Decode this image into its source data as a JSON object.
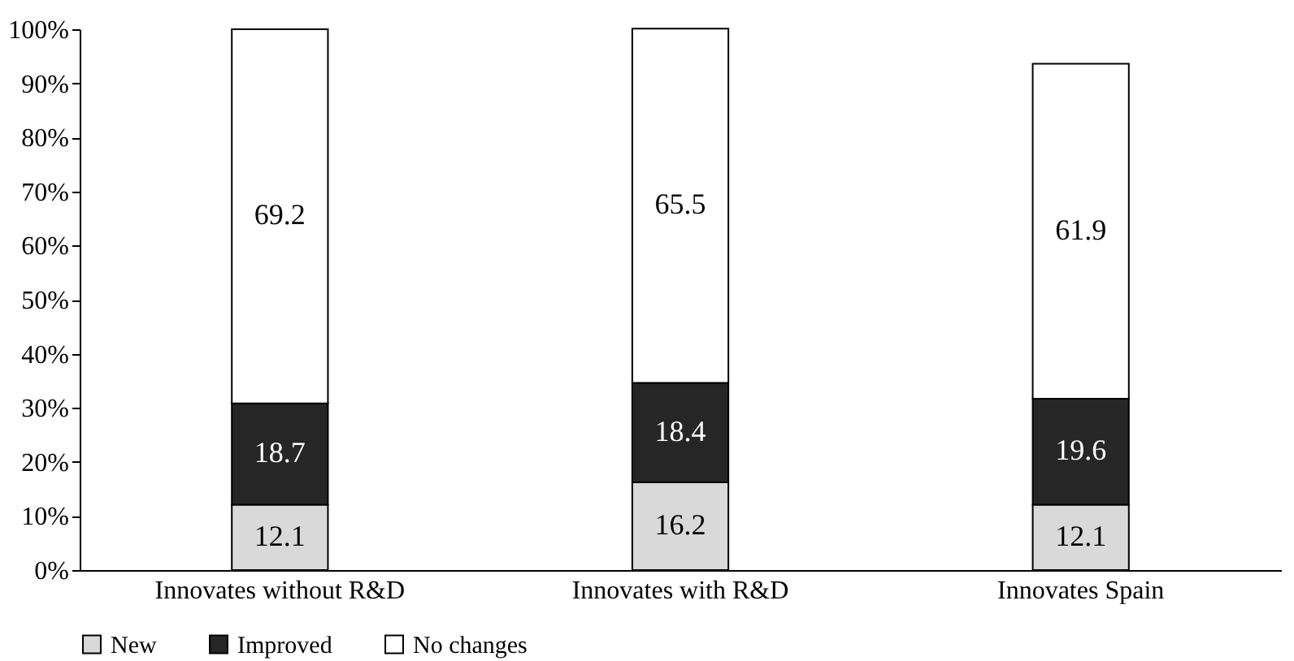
{
  "chart_data": {
    "type": "bar",
    "stacked": true,
    "categories": [
      "Innovates without R&D",
      "Innovates with R&D",
      "Innovates Spain"
    ],
    "series": [
      {
        "name": "New",
        "color": "#d9d9d9",
        "values": [
          12.1,
          16.2,
          12.1
        ]
      },
      {
        "name": "Improved",
        "color": "#262626",
        "values": [
          18.7,
          18.4,
          19.6
        ]
      },
      {
        "name": "No changes",
        "color": "#ffffff",
        "values": [
          69.2,
          65.5,
          61.9
        ]
      }
    ],
    "ylim": [
      0,
      100
    ],
    "yticks": [
      {
        "value": 0,
        "label": "0%"
      },
      {
        "value": 10,
        "label": "10%"
      },
      {
        "value": 20,
        "label": "20%"
      },
      {
        "value": 30,
        "label": "30%"
      },
      {
        "value": 40,
        "label": "40%"
      },
      {
        "value": 50,
        "label": "50%"
      },
      {
        "value": 60,
        "label": "60%"
      },
      {
        "value": 70,
        "label": "70%"
      },
      {
        "value": 80,
        "label": "80%"
      },
      {
        "value": 90,
        "label": "90%"
      },
      {
        "value": 100,
        "label": "100%"
      }
    ],
    "data_labels": true,
    "legend": "bottom",
    "grid": false
  }
}
